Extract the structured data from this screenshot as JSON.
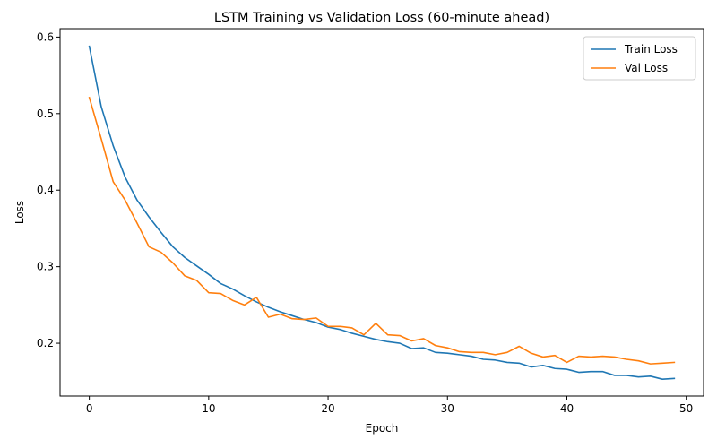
{
  "chart_data": {
    "type": "line",
    "title": "LSTM Training vs Validation Loss (60-minute ahead)",
    "xlabel": "Epoch",
    "ylabel": "Loss",
    "xlim": [
      -2.45,
      51.45
    ],
    "ylim": [
      0.131,
      0.611
    ],
    "xticks": [
      0,
      10,
      20,
      30,
      40,
      50
    ],
    "yticks": [
      0.2,
      0.3,
      0.4,
      0.5,
      0.6
    ],
    "xtick_labels": [
      "0",
      "10",
      "20",
      "30",
      "40",
      "50"
    ],
    "ytick_labels": [
      "0.2",
      "0.3",
      "0.4",
      "0.5",
      "0.6"
    ],
    "grid": false,
    "legend_position": "top-right",
    "x": [
      0,
      1,
      2,
      3,
      4,
      5,
      6,
      7,
      8,
      9,
      10,
      11,
      12,
      13,
      14,
      15,
      16,
      17,
      18,
      19,
      20,
      21,
      22,
      23,
      24,
      25,
      26,
      27,
      28,
      29,
      30,
      31,
      32,
      33,
      34,
      35,
      36,
      37,
      38,
      39,
      40,
      41,
      42,
      43,
      44,
      45,
      46,
      47,
      48,
      49
    ],
    "series": [
      {
        "name": "Train Loss",
        "color": "#1f77b4",
        "values": [
          0.588,
          0.509,
          0.458,
          0.417,
          0.387,
          0.365,
          0.345,
          0.326,
          0.312,
          0.301,
          0.29,
          0.278,
          0.271,
          0.262,
          0.254,
          0.247,
          0.241,
          0.236,
          0.231,
          0.227,
          0.221,
          0.218,
          0.213,
          0.209,
          0.205,
          0.202,
          0.2,
          0.193,
          0.194,
          0.188,
          0.187,
          0.185,
          0.183,
          0.179,
          0.178,
          0.175,
          0.174,
          0.169,
          0.171,
          0.167,
          0.166,
          0.162,
          0.163,
          0.163,
          0.158,
          0.158,
          0.156,
          0.157,
          0.153,
          0.154
        ]
      },
      {
        "name": "Val Loss",
        "color": "#ff7f0e",
        "values": [
          0.521,
          0.467,
          0.411,
          0.387,
          0.357,
          0.326,
          0.319,
          0.305,
          0.288,
          0.282,
          0.266,
          0.265,
          0.256,
          0.25,
          0.26,
          0.234,
          0.238,
          0.232,
          0.231,
          0.233,
          0.222,
          0.222,
          0.22,
          0.211,
          0.226,
          0.211,
          0.21,
          0.203,
          0.206,
          0.197,
          0.194,
          0.189,
          0.188,
          0.188,
          0.185,
          0.188,
          0.196,
          0.187,
          0.182,
          0.184,
          0.175,
          0.183,
          0.182,
          0.183,
          0.182,
          0.179,
          0.177,
          0.173,
          0.174,
          0.175
        ]
      }
    ]
  }
}
